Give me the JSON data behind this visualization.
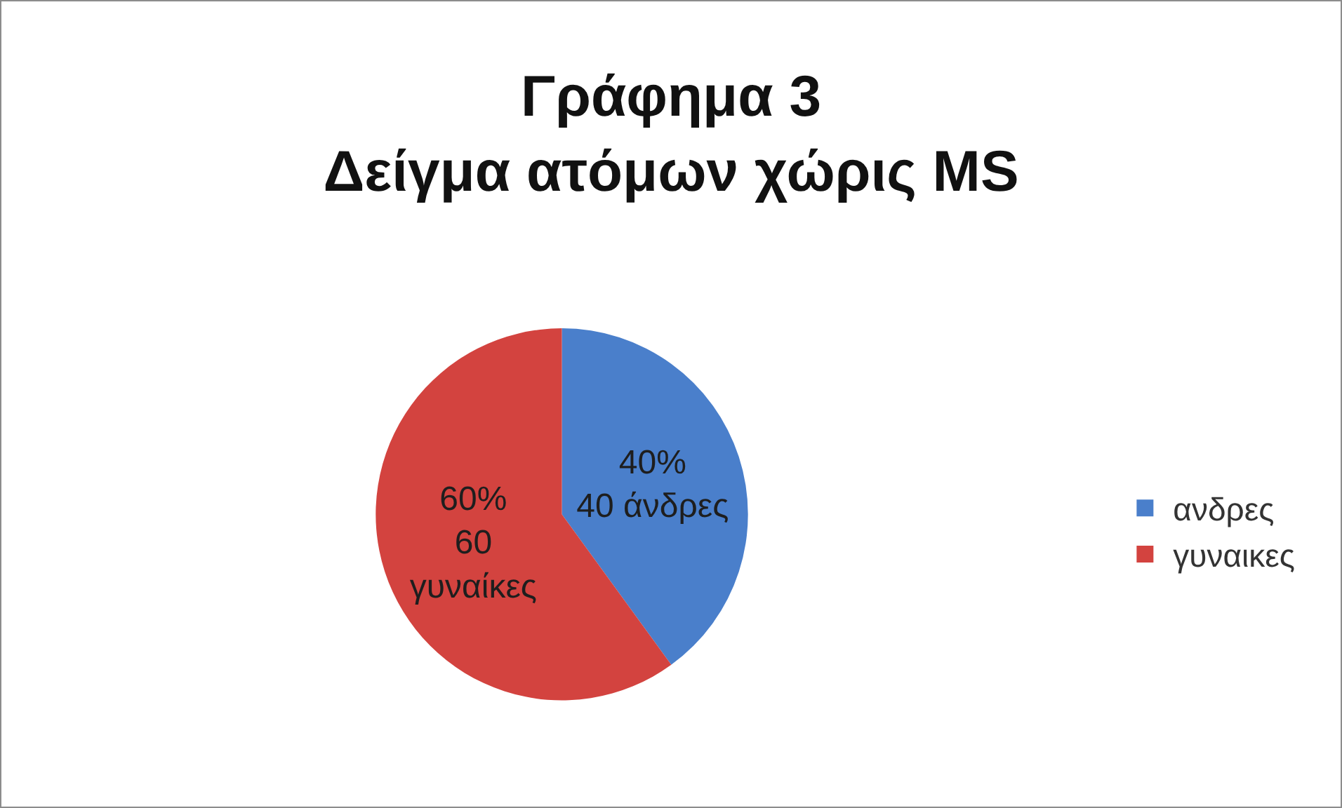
{
  "chart_data": {
    "type": "pie",
    "title": "Γράφημα 3\nΔείγμα ατόμων χώρις MS",
    "categories": [
      "ανδρες",
      "γυναικες"
    ],
    "values": [
      40,
      60
    ],
    "colors": [
      "#4a7fcb",
      "#d3433f"
    ],
    "value_labels": [
      "40%\n40 άνδρες",
      "60%\n60\nγυναίκες"
    ],
    "legend": "right"
  }
}
